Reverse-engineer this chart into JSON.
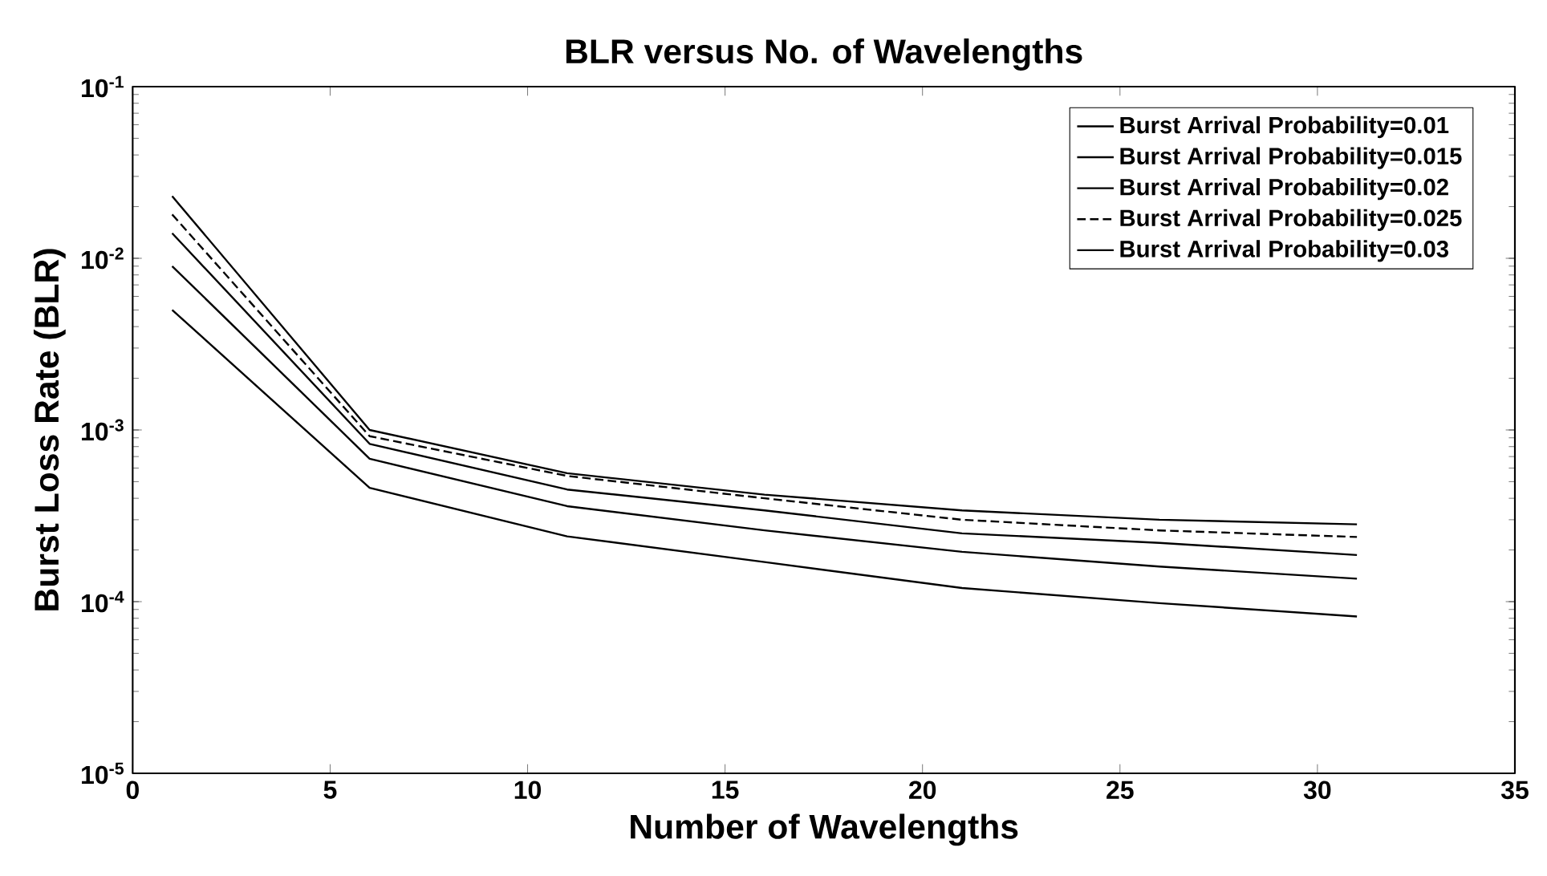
{
  "chart_data": {
    "type": "line",
    "title": "BLR versus No. of Wavelengths",
    "xlabel": "Number of Wavelengths",
    "ylabel": "Burst Loss Rate (BLR)",
    "x": [
      1,
      6,
      11,
      16,
      21,
      26,
      31
    ],
    "series": [
      {
        "name": "Burst Arrival Probability=0.01",
        "color": "#000000",
        "line_style": "solid",
        "values": [
          0.005,
          0.00046,
          0.00024,
          0.00017,
          0.00012,
          9.8e-05,
          8.2e-05
        ]
      },
      {
        "name": "Burst Arrival Probability=0.015",
        "color": "#000000",
        "line_style": "solid",
        "values": [
          0.009,
          0.00068,
          0.00036,
          0.00026,
          0.000195,
          0.00016,
          0.000136
        ]
      },
      {
        "name": "Burst Arrival Probability=0.02",
        "color": "#000000",
        "line_style": "solid",
        "values": [
          0.014,
          0.00083,
          0.00045,
          0.00034,
          0.00025,
          0.00022,
          0.000187
        ]
      },
      {
        "name": "Burst Arrival Probability=0.025",
        "color": "#000000",
        "line_style": "dashed",
        "values": [
          0.018,
          0.00092,
          0.00054,
          0.0004,
          0.0003,
          0.00026,
          0.000238
        ]
      },
      {
        "name": "Burst Arrival Probability=0.03",
        "color": "#000000",
        "line_style": "solid",
        "values": [
          0.023,
          0.001,
          0.00056,
          0.00042,
          0.00034,
          0.0003,
          0.000282
        ]
      }
    ],
    "xlim": [
      0,
      35
    ],
    "xticks": [
      0,
      5,
      10,
      15,
      20,
      25,
      30,
      35
    ],
    "ylim": [
      1e-05,
      0.1
    ],
    "yticks": [
      {
        "value": 1e-05,
        "label": "10$^{-5}$"
      },
      {
        "value": 0.0001,
        "label": "10$^{-4}$"
      },
      {
        "value": 0.001,
        "label": "10$^{-3}$"
      },
      {
        "value": 0.01,
        "label": "10$^{-2}$"
      },
      {
        "value": 0.1,
        "label": "10$^{-1}$"
      }
    ],
    "log": "y",
    "grid": false,
    "legend": "top right",
    "marker": "none"
  }
}
